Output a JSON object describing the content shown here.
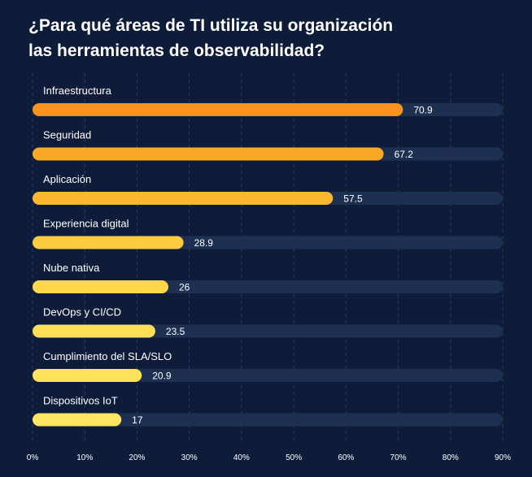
{
  "title_lines": [
    "¿Para qué áreas de TI utiliza su organización",
    "las herramientas de observabilidad?"
  ],
  "colors": {
    "background": "#0e1c3a",
    "track": "#1d3052",
    "grid": "#2b3d60",
    "label": "#ffffff",
    "tick": "#ffffff",
    "bar_gradient": [
      "#f7931e",
      "#f9a826",
      "#fbb730",
      "#fdcb40",
      "#ffd84a",
      "#ffdf55",
      "#ffe25c",
      "#ffe563"
    ]
  },
  "chart_data": {
    "type": "bar",
    "orientation": "horizontal",
    "title": "¿Para qué áreas de TI utiliza su organización las herramientas de observabilidad?",
    "categories": [
      "Infraestructura",
      "Seguridad",
      "Aplicación",
      "Experiencia digital",
      "Nube nativa",
      "DevOps y CI/CD",
      "Cumplimiento del SLA/SLO",
      "Dispositivos IoT"
    ],
    "values": [
      70.9,
      67.2,
      57.5,
      28.9,
      26,
      23.5,
      20.9,
      17
    ],
    "value_labels": [
      "70.9",
      "67.2",
      "57.5",
      "28.9",
      "26",
      "23.5",
      "20.9",
      "17"
    ],
    "xlim": [
      0,
      90
    ],
    "xticks": [
      0,
      10,
      20,
      30,
      40,
      50,
      60,
      70,
      80,
      90
    ],
    "xtick_labels": [
      "0%",
      "10%",
      "20%",
      "30%",
      "40%",
      "50%",
      "60%",
      "70%",
      "80%",
      "90%"
    ],
    "grid": true,
    "legend": "none"
  }
}
